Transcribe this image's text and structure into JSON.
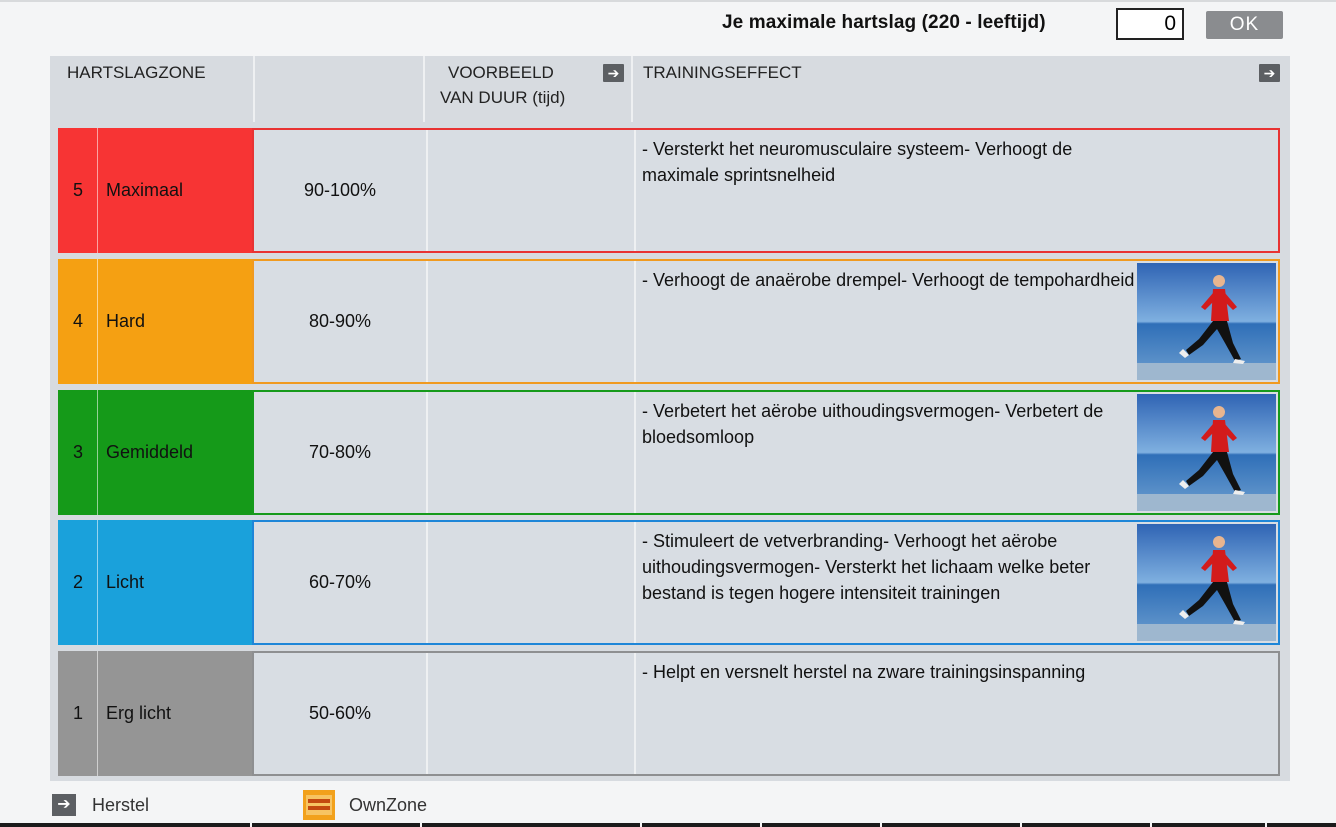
{
  "header": {
    "max_hr_label": "Je maximale hartslag (220 - leeftijd)",
    "max_hr_value": "0",
    "ok_label": "OK"
  },
  "columns": {
    "zone": "HARTSLAGZONE",
    "duration_line1": "VOORBEELD",
    "duration_line2": "VAN DUUR (tijd)",
    "effect": "TRAININGSEFFECT"
  },
  "zones": [
    {
      "number": "5",
      "name": "Maximaal",
      "range": "90-100%",
      "color": "#f73434",
      "border": "#e83333",
      "effect": "- Versterkt het neuromusculaire systeem- Verhoogt de maximale sprintsnelheid",
      "photo": false
    },
    {
      "number": "4",
      "name": "Hard",
      "range": "80-90%",
      "color": "#f5a012",
      "border": "#f09a20",
      "effect": "- Verhoogt de anaërobe drempel- Verhoogt de tempohardheid",
      "photo": true
    },
    {
      "number": "3",
      "name": "Gemiddeld",
      "range": "70-80%",
      "color": "#159a19",
      "border": "#169a1b",
      "effect": "- Verbetert het aërobe uithoudingsvermogen- Verbetert de bloedsomloop",
      "photo": true
    },
    {
      "number": "2",
      "name": "Licht",
      "range": "60-70%",
      "color": "#1aa1db",
      "border": "#1e86d8",
      "effect": "- Stimuleert de vetverbranding- Verhoogt het aërobe uithoudingsvermogen- Versterkt het lichaam welke beter bestand is tegen hogere intensiteit trainingen",
      "photo": true
    },
    {
      "number": "1",
      "name": "Erg licht",
      "range": "50-60%",
      "color": "#959595",
      "border": "#8e8f91",
      "effect": "- Helpt en versnelt herstel na zware trainingsinspanning",
      "photo": false
    }
  ],
  "legend": {
    "herstel": "Herstel",
    "ownzone": "OwnZone"
  }
}
